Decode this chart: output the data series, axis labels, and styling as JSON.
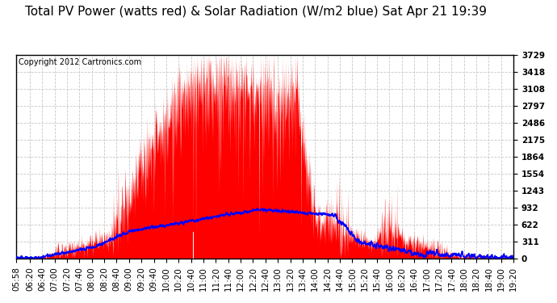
{
  "title": "Total PV Power (watts red) & Solar Radiation (W/m2 blue) Sat Apr 21 19:39",
  "copyright_text": "Copyright 2012 Cartronics.com",
  "background_color": "#ffffff",
  "plot_bg_color": "#ffffff",
  "y_max": 3729.0,
  "y_min": 0.0,
  "y_ticks": [
    0.0,
    310.7,
    621.5,
    932.2,
    1243.0,
    1553.7,
    1864.5,
    2175.2,
    2486.0,
    2796.7,
    3107.5,
    3418.2,
    3729.0
  ],
  "x_tick_labels": [
    "05:58",
    "06:20",
    "06:40",
    "07:00",
    "07:20",
    "07:40",
    "08:00",
    "08:20",
    "08:40",
    "09:00",
    "09:20",
    "09:40",
    "10:00",
    "10:20",
    "10:40",
    "11:00",
    "11:20",
    "11:40",
    "12:00",
    "12:20",
    "12:40",
    "13:00",
    "13:20",
    "13:40",
    "14:00",
    "14:20",
    "14:40",
    "15:00",
    "15:20",
    "15:40",
    "16:00",
    "16:20",
    "16:40",
    "17:00",
    "17:20",
    "17:40",
    "18:00",
    "18:20",
    "18:40",
    "19:00",
    "19:20"
  ],
  "pv_color": "#ff0000",
  "solar_color": "#0000ff",
  "grid_color": "#c8c8c8",
  "title_fontsize": 11,
  "tick_fontsize": 7.5,
  "copyright_fontsize": 7
}
